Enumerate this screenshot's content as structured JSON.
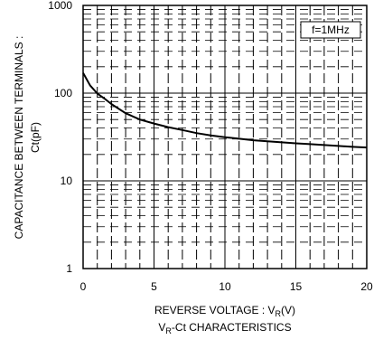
{
  "chart_data": {
    "type": "line",
    "title": "VR-Ct CHARACTERISTICS",
    "xlabel": "REVERSE VOLTAGE : VR(V)",
    "ylabel_line1": "CAPACITANCE BETWEEN TERMINALS :",
    "ylabel_line2": "Ct(pF)",
    "xlim": [
      0,
      20
    ],
    "ylim": [
      1,
      1000
    ],
    "yscale": "log",
    "grid": true,
    "x_ticks": [
      "0",
      "5",
      "10",
      "15",
      "20"
    ],
    "y_ticks": [
      "1",
      "10",
      "100",
      "1000"
    ],
    "annotation": "f=1MHz",
    "series": [
      {
        "x": [
          0,
          0.5,
          1,
          1.5,
          2,
          3,
          4,
          5,
          6,
          7,
          8,
          9,
          10,
          11,
          12,
          13,
          14,
          15,
          16,
          17,
          18,
          19,
          20
        ],
        "y": [
          170,
          122,
          99,
          87,
          75,
          59,
          50,
          45,
          41,
          38,
          35,
          33,
          31.5,
          30.2,
          29,
          28.2,
          27.5,
          26.8,
          26.2,
          25.6,
          25,
          24.4,
          24
        ]
      }
    ],
    "colors": {
      "line": "#000000",
      "grid": "#000000"
    }
  }
}
